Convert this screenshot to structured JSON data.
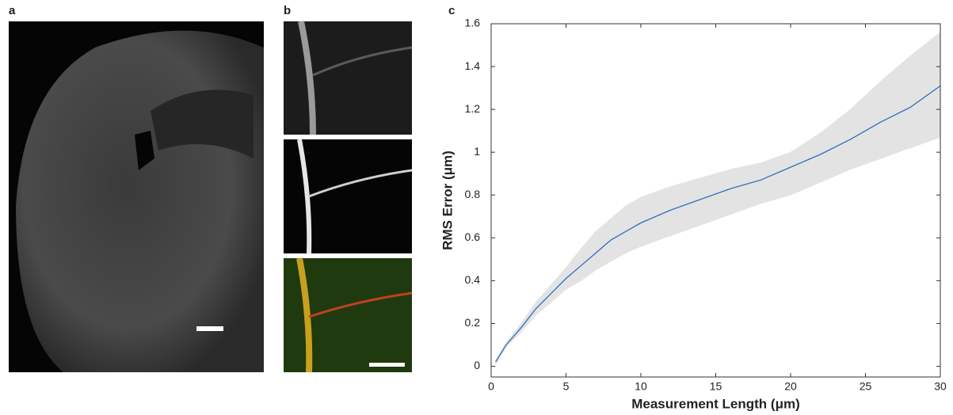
{
  "panel_labels": [
    "a",
    "b",
    "c"
  ],
  "chart_data": {
    "type": "line",
    "xlabel": "Measurement Length (μm)",
    "ylabel": "RMS Error (μm)",
    "x": [
      0.3,
      1,
      2,
      3,
      4,
      5,
      6,
      7,
      8,
      9,
      10,
      12,
      14,
      16,
      18,
      20,
      22,
      24,
      26,
      28,
      30
    ],
    "values": [
      0.02,
      0.1,
      0.18,
      0.27,
      0.34,
      0.41,
      0.47,
      0.53,
      0.59,
      0.63,
      0.67,
      0.73,
      0.78,
      0.83,
      0.87,
      0.93,
      0.99,
      1.06,
      1.14,
      1.21,
      1.31
    ],
    "color": "#2e6fbf",
    "band": {
      "lower": [
        0.01,
        0.09,
        0.16,
        0.24,
        0.3,
        0.36,
        0.4,
        0.45,
        0.49,
        0.53,
        0.56,
        0.61,
        0.66,
        0.71,
        0.76,
        0.8,
        0.86,
        0.92,
        0.97,
        1.02,
        1.07
      ],
      "upper": [
        0.03,
        0.11,
        0.2,
        0.3,
        0.38,
        0.46,
        0.55,
        0.63,
        0.69,
        0.75,
        0.79,
        0.84,
        0.88,
        0.92,
        0.95,
        1.0,
        1.09,
        1.2,
        1.33,
        1.45,
        1.56
      ],
      "color": "#e3e3e3"
    },
    "xlim": [
      0,
      30
    ],
    "xticks": [
      0,
      5,
      10,
      15,
      20,
      25,
      30
    ],
    "ylim": [
      -0.05,
      1.6
    ],
    "yticks": [
      0,
      0.2,
      0.4,
      0.6,
      0.8,
      1,
      1.2,
      1.4,
      1.6
    ]
  }
}
